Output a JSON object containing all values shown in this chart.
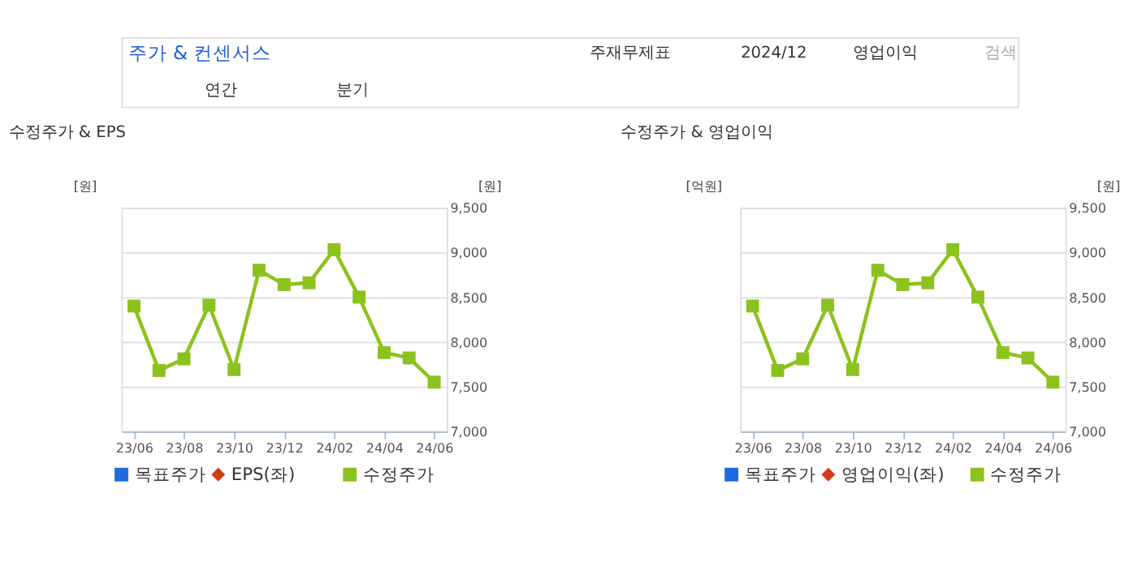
{
  "chart_data": [
    {
      "type": "line",
      "title": "수정주가 & EPS",
      "annotations": [
        "주가 & 컨센서스",
        "주재무제표",
        "2024/12",
        "영업이익",
        "검색",
        "연간",
        "분기"
      ],
      "categories": [
        "23/06",
        null,
        "23/08",
        null,
        "23/10",
        null,
        "23/12",
        null,
        "24/02",
        null,
        "24/04",
        null,
        "24/06"
      ],
      "ylabel": "[원]",
      "y2label": "[원]",
      "y2lim": [
        7000,
        9500
      ],
      "y2ticks": [
        {
          "value": 7000,
          "label": "7,000"
        },
        {
          "value": 7500,
          "label": "7,500"
        },
        {
          "value": 8000,
          "label": "8,000"
        },
        {
          "value": 8500,
          "label": "8,500"
        },
        {
          "value": 9000,
          "label": "9,000"
        },
        {
          "value": 9500,
          "label": "9,500"
        }
      ],
      "grid": "y",
      "legend": "bottom",
      "line_style": "solid",
      "series": [
        {
          "name": "목표주가",
          "color": "#1f6ae0",
          "marker": "square",
          "axis": "y2",
          "values": [
            null,
            null,
            null,
            null,
            null,
            null,
            null,
            null,
            null,
            null,
            null,
            null,
            null
          ]
        },
        {
          "name": "EPS(좌)",
          "color": "#d13b17",
          "marker": "diamond",
          "values": [
            null,
            null,
            null,
            null,
            null,
            null,
            null,
            null,
            null,
            null,
            null,
            null,
            null
          ]
        },
        {
          "name": "수정주가",
          "color": "#8cc21d",
          "marker": "square",
          "axis": "y2",
          "values": [
            8400,
            7680,
            7810,
            8410,
            7690,
            8800,
            8640,
            8660,
            9030,
            8500,
            7880,
            7820,
            7550
          ]
        }
      ]
    },
    {
      "type": "line",
      "title": "수정주가 & 영업이익",
      "categories": [
        "23/06",
        null,
        "23/08",
        null,
        "23/10",
        null,
        "23/12",
        null,
        "24/02",
        null,
        "24/04",
        null,
        "24/06"
      ],
      "ylabel": "[억원]",
      "y2label": "[원]",
      "y2lim": [
        7000,
        9500
      ],
      "y2ticks": [
        {
          "value": 7000,
          "label": "7,000"
        },
        {
          "value": 7500,
          "label": "7,500"
        },
        {
          "value": 8000,
          "label": "8,000"
        },
        {
          "value": 8500,
          "label": "8,500"
        },
        {
          "value": 9000,
          "label": "9,000"
        },
        {
          "value": 9500,
          "label": "9,500"
        }
      ],
      "grid": "y",
      "legend": "bottom",
      "line_style": "solid",
      "series": [
        {
          "name": "목표주가",
          "color": "#1f6ae0",
          "marker": "square",
          "axis": "y2",
          "values": [
            null,
            null,
            null,
            null,
            null,
            null,
            null,
            null,
            null,
            null,
            null,
            null,
            null
          ]
        },
        {
          "name": "영업이익(좌)",
          "color": "#d13b17",
          "marker": "diamond",
          "values": [
            null,
            null,
            null,
            null,
            null,
            null,
            null,
            null,
            null,
            null,
            null,
            null,
            null
          ]
        },
        {
          "name": "수정주가",
          "color": "#8cc21d",
          "marker": "square",
          "axis": "y2",
          "values": [
            8400,
            7680,
            7810,
            8410,
            7690,
            8800,
            8640,
            8660,
            9030,
            8500,
            7880,
            7820,
            7550
          ]
        }
      ]
    }
  ]
}
